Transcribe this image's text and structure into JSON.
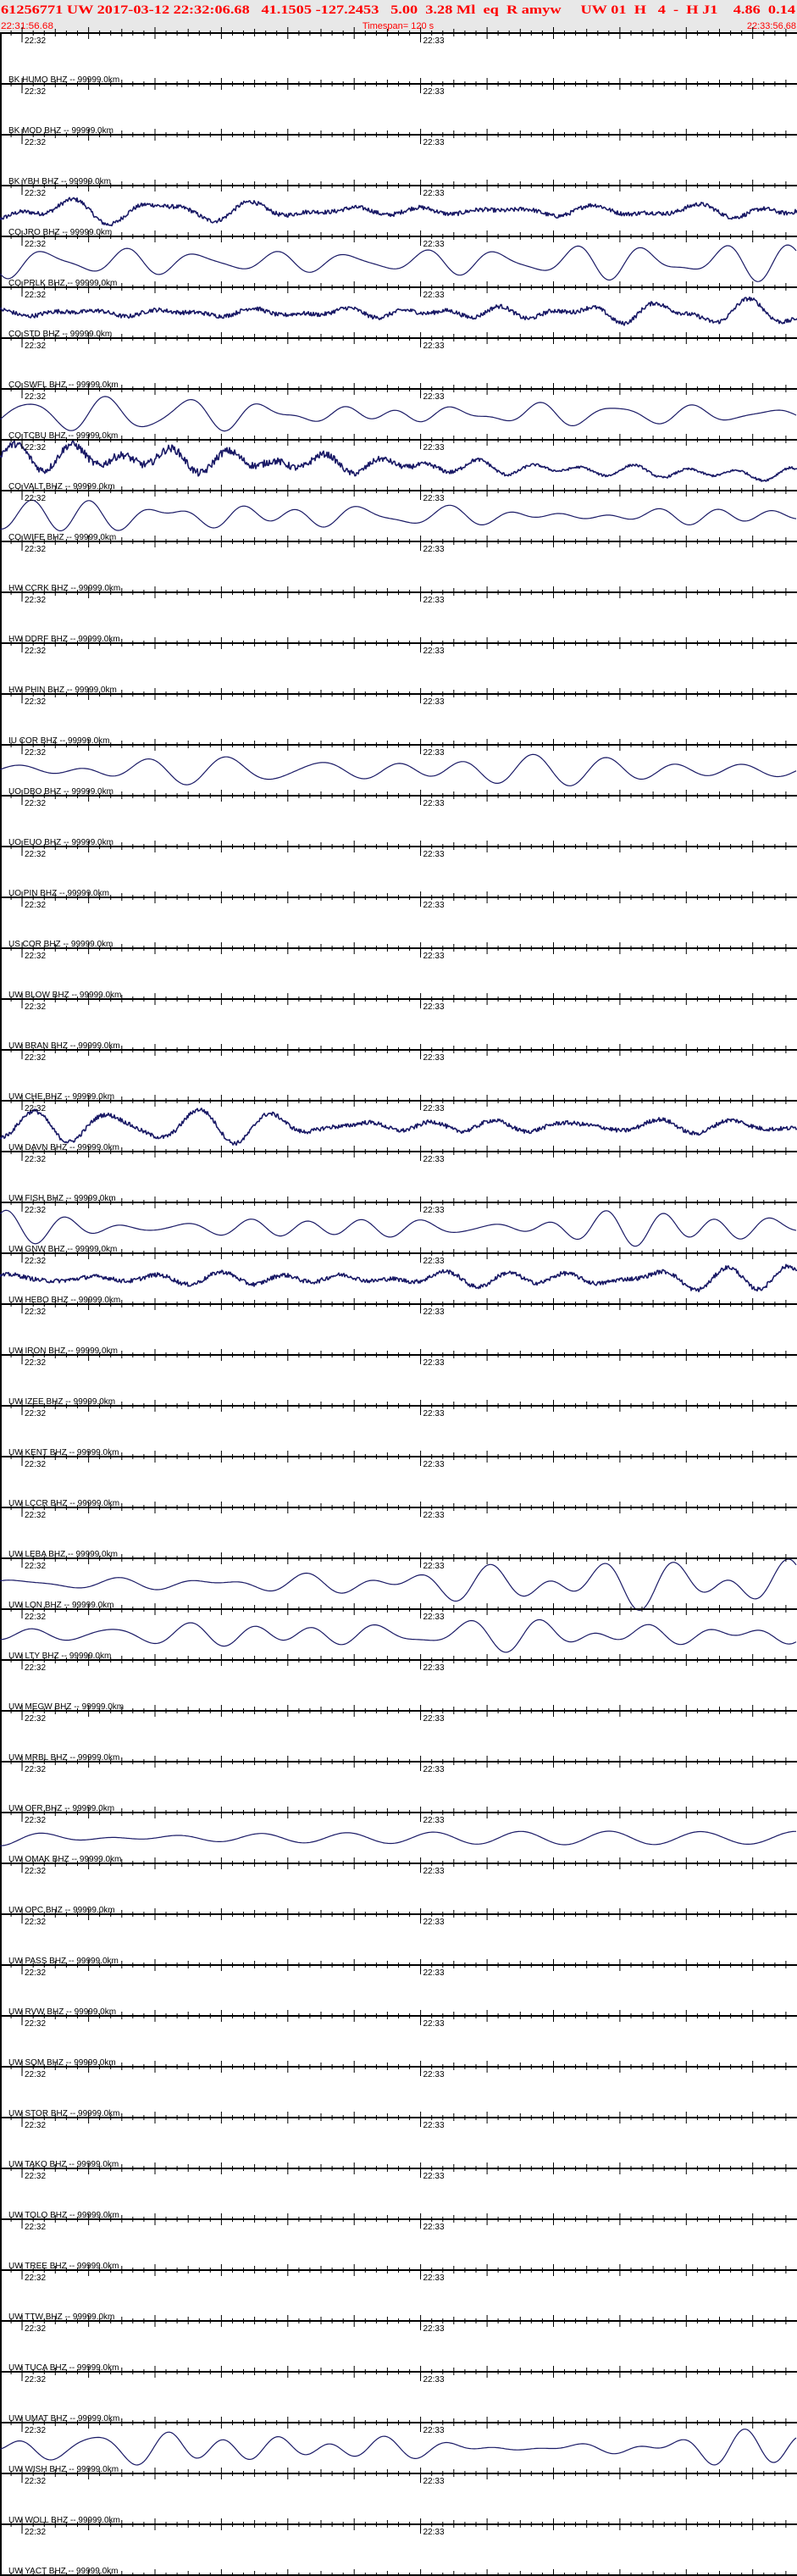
{
  "header": {
    "event_line": "61256771 UW 2017-03-12 22:32:06.68   41.1505 -127.2453   5.00  3.28 Ml  eq  R amyw     UW 01  H   4  -  H J1    4.86  0.14",
    "start_time": "22:31:56.68",
    "timespan": "Timespan= 120 s",
    "end_time": "22:33:56.68"
  },
  "colors": {
    "header_text": "#ff0000",
    "header_bg": "#e8e8e8",
    "trace": "#1a1a66",
    "axis": "#000000"
  },
  "time_axis": {
    "start": "22:31:56.68",
    "end": "22:33:56.68",
    "span_s": 120,
    "minute_labels": [
      "22:32",
      "22:33"
    ]
  },
  "stations": [
    {
      "label": "BK HUMO BHZ -- 99999.0km",
      "trace": "none"
    },
    {
      "label": "BK MOD BHZ -- 99999.0km",
      "trace": "none"
    },
    {
      "label": "BK YBH BHZ -- 99999.0km",
      "trace": "noisy"
    },
    {
      "label": "CQ JRO BHZ -- 99999.0km",
      "trace": "smooth"
    },
    {
      "label": "CQ PRLK BHZ -- 99999.0km",
      "trace": "noisy"
    },
    {
      "label": "CQ STD BHZ -- 99999.0km",
      "trace": "none"
    },
    {
      "label": "CQ SWFL BHZ -- 99999.0km",
      "trace": "smooth"
    },
    {
      "label": "CQ TCBU BHZ -- 99999.0km",
      "trace": "very-noisy"
    },
    {
      "label": "CQ VALT BHZ -- 99999.0km",
      "trace": "smooth"
    },
    {
      "label": "CQ WIFE BHZ -- 99999.0km",
      "trace": "none"
    },
    {
      "label": "HW CCRK BHZ -- 99999.0km",
      "trace": "none"
    },
    {
      "label": "HW DDRF BHZ -- 99999.0km",
      "trace": "none"
    },
    {
      "label": "HW PHIN BHZ -- 99999.0km",
      "trace": "none"
    },
    {
      "label": "IU COR BHZ -- 99999.0km",
      "trace": "smooth"
    },
    {
      "label": "UO DBO BHZ -- 99999.0km",
      "trace": "none"
    },
    {
      "label": "UO EUO BHZ -- 99999.0km",
      "trace": "none"
    },
    {
      "label": "UO PIN BHZ -- 99999.0km",
      "trace": "none"
    },
    {
      "label": "US COR BHZ -- 99999.0km",
      "trace": "none"
    },
    {
      "label": "UW BLOW BHZ -- 99999.0km",
      "trace": "none"
    },
    {
      "label": "UW BRAN BHZ -- 99999.0km",
      "trace": "none"
    },
    {
      "label": "UW CHE BHZ -- 99999.0km",
      "trace": "noisy"
    },
    {
      "label": "UW DAVN BHZ -- 99999.0km",
      "trace": "none"
    },
    {
      "label": "UW FISH BHZ -- 99999.0km",
      "trace": "smooth"
    },
    {
      "label": "UW GNW BHZ -- 99999.0km",
      "trace": "noisy"
    },
    {
      "label": "UW HEBO BHZ -- 99999.0km",
      "trace": "none"
    },
    {
      "label": "UW IRON BHZ -- 99999.0km",
      "trace": "none"
    },
    {
      "label": "UW IZEE BHZ -- 99999.0km",
      "trace": "none"
    },
    {
      "label": "UW KENT BHZ -- 99999.0km",
      "trace": "none"
    },
    {
      "label": "UW LCCR BHZ -- 99999.0km",
      "trace": "none"
    },
    {
      "label": "UW LEBA BHZ -- 99999.0km",
      "trace": "smooth"
    },
    {
      "label": "UW LON BHZ -- 99999.0km",
      "trace": "smooth"
    },
    {
      "label": "UW LTY BHZ -- 99999.0km",
      "trace": "none"
    },
    {
      "label": "UW MEGW BHZ -- 99999.0km",
      "trace": "none"
    },
    {
      "label": "UW MRBL BHZ -- 99999.0km",
      "trace": "none"
    },
    {
      "label": "UW OFR BHZ -- 99999.0km",
      "trace": "smooth"
    },
    {
      "label": "UW OMAK BHZ -- 99999.0km",
      "trace": "none"
    },
    {
      "label": "UW OPC BHZ -- 99999.0km",
      "trace": "none"
    },
    {
      "label": "UW PASS BHZ -- 99999.0km",
      "trace": "none"
    },
    {
      "label": "UW RVW BHZ -- 99999.0km",
      "trace": "none"
    },
    {
      "label": "UW SQM BHZ -- 99999.0km",
      "trace": "none"
    },
    {
      "label": "UW STOR BHZ -- 99999.0km",
      "trace": "none"
    },
    {
      "label": "UW TAKO BHZ -- 99999.0km",
      "trace": "none"
    },
    {
      "label": "UW TOLO BHZ -- 99999.0km",
      "trace": "none"
    },
    {
      "label": "UW TREE BHZ -- 99999.0km",
      "trace": "none"
    },
    {
      "label": "UW TTW BHZ -- 99999.0km",
      "trace": "none"
    },
    {
      "label": "UW TUCA BHZ -- 99999.0km",
      "trace": "none"
    },
    {
      "label": "UW UMAT BHZ -- 99999.0km",
      "trace": "smooth"
    },
    {
      "label": "UW WISH BHZ -- 99999.0km",
      "trace": "none"
    },
    {
      "label": "UW WOLL BHZ -- 99999.0km",
      "trace": "none"
    },
    {
      "label": "UW YACT BHZ -- 99999.0km",
      "trace": "none"
    }
  ]
}
